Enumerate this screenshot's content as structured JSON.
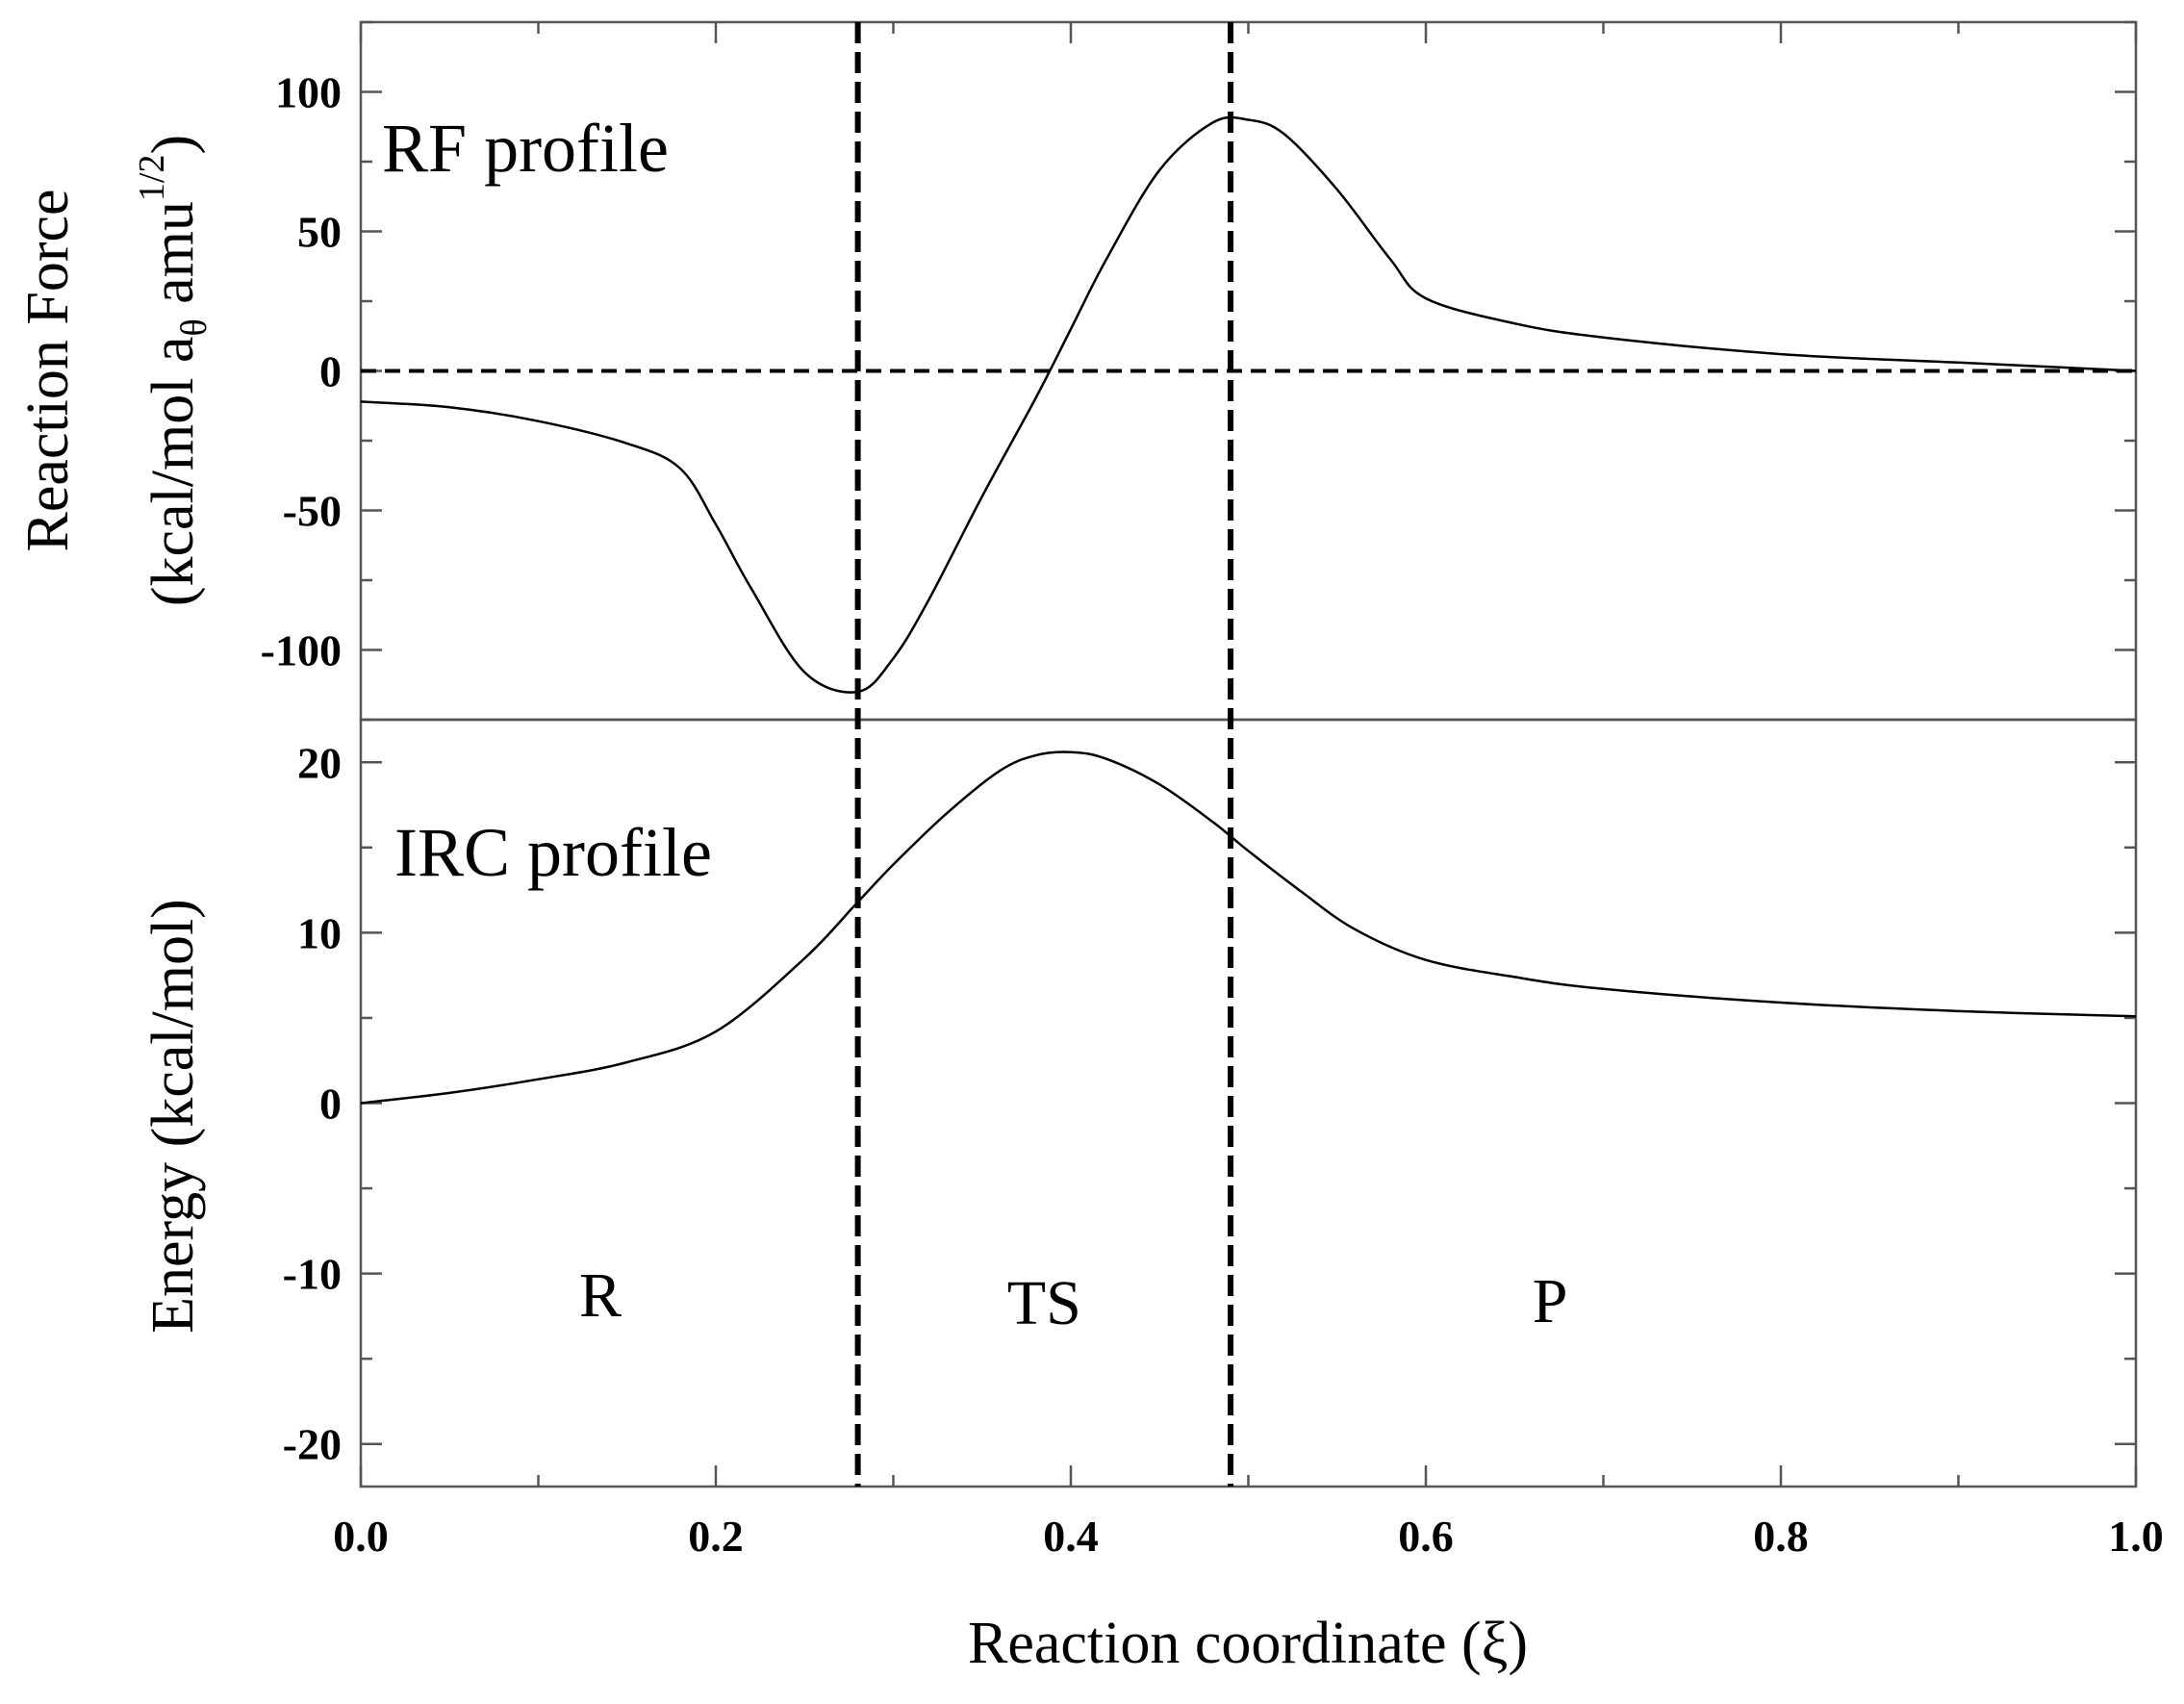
{
  "chart_data": [
    {
      "type": "line",
      "panel": "top",
      "title": "RF profile",
      "xlabel": "Reaction coordinate (ξ)",
      "ylabel_line1": "Reaction Force",
      "ylabel_line2": {
        "open": "(kcal/mol a",
        "sub": "θ",
        "mid": " amu",
        "sup": "1/2",
        "close": ")"
      },
      "xlim": [
        0.0,
        1.0
      ],
      "ylim": [
        -125,
        125
      ],
      "yticks": [
        -100,
        -50,
        0,
        50,
        100
      ],
      "ytick_labels": [
        "-100",
        "-50",
        "0",
        "50",
        "100"
      ],
      "reference_line_y": 0,
      "series": [
        {
          "name": "Reaction force",
          "x": [
            0.0,
            0.05,
            0.1,
            0.15,
            0.18,
            0.2,
            0.22,
            0.25,
            0.28,
            0.3,
            0.32,
            0.35,
            0.38,
            0.4,
            0.42,
            0.45,
            0.48,
            0.5,
            0.52,
            0.55,
            0.58,
            0.6,
            0.65,
            0.7,
            0.8,
            0.9,
            1.0
          ],
          "y": [
            -11,
            -13,
            -18,
            -26,
            -35,
            -55,
            -78,
            -108,
            -115,
            -103,
            -82,
            -45,
            -10,
            15,
            40,
            72,
            89,
            90,
            85,
            65,
            40,
            26,
            17,
            12,
            6,
            3,
            0
          ]
        }
      ]
    },
    {
      "type": "line",
      "panel": "bottom",
      "title": "IRC profile",
      "xlabel": "Reaction coordinate (ξ)",
      "ylabel": "Energy (kcal/mol)",
      "xlim": [
        0.0,
        1.0
      ],
      "ylim": [
        -22.5,
        22.5
      ],
      "xticks": [
        0.0,
        0.2,
        0.4,
        0.6,
        0.8,
        1.0
      ],
      "xtick_labels": [
        "0.0",
        "0.2",
        "0.4",
        "0.6",
        "0.8",
        "1.0"
      ],
      "yticks": [
        -20,
        -10,
        0,
        10,
        20
      ],
      "ytick_labels": [
        "-20",
        "-10",
        "0",
        "10",
        "20"
      ],
      "series": [
        {
          "name": "Energy",
          "x": [
            0.0,
            0.05,
            0.1,
            0.15,
            0.2,
            0.25,
            0.28,
            0.3,
            0.33,
            0.36,
            0.38,
            0.4,
            0.42,
            0.45,
            0.48,
            0.5,
            0.53,
            0.56,
            0.6,
            0.65,
            0.7,
            0.8,
            0.9,
            1.0
          ],
          "y": [
            0,
            0.6,
            1.4,
            2.4,
            4.2,
            8.5,
            11.8,
            14.0,
            17.0,
            19.5,
            20.4,
            20.6,
            20.2,
            18.7,
            16.5,
            14.8,
            12.4,
            10.2,
            8.4,
            7.4,
            6.7,
            5.9,
            5.4,
            5.1
          ]
        }
      ]
    }
  ],
  "region_boundaries": [
    0.28,
    0.49
  ],
  "regions": [
    {
      "label": "R",
      "x": 0.135
    },
    {
      "label": "TS",
      "x": 0.385
    },
    {
      "label": "P",
      "x": 0.67
    }
  ]
}
